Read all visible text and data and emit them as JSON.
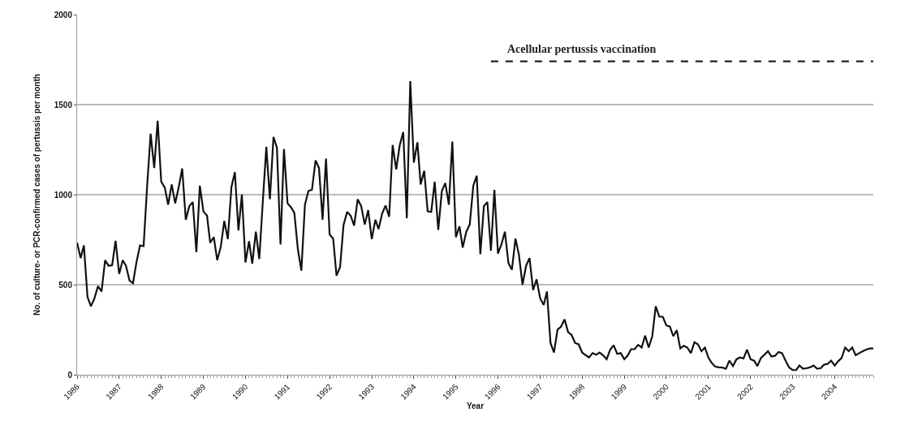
{
  "chart_data": {
    "type": "line",
    "xlabel": "Year",
    "ylabel": "No. of culture- or PCR-confirmed cases of pertussis per month",
    "grid": "y",
    "ylim": [
      0,
      2000
    ],
    "yticks": [
      0,
      500,
      1000,
      1500,
      2000
    ],
    "xlim": [
      "1986-01",
      "2004-12"
    ],
    "xticks": [
      {
        "value": "1986-01",
        "label": "1986"
      },
      {
        "value": "1987-01",
        "label": "1987"
      },
      {
        "value": "1988-01",
        "label": "1988"
      },
      {
        "value": "1989-01",
        "label": "1989"
      },
      {
        "value": "1990-01",
        "label": "1990"
      },
      {
        "value": "1991-01",
        "label": "1991"
      },
      {
        "value": "1992-01",
        "label": "1992"
      },
      {
        "value": "1993-01",
        "label": "1993"
      },
      {
        "value": "1994-01",
        "label": "1994"
      },
      {
        "value": "1995-01",
        "label": "1995"
      },
      {
        "value": "1996-01",
        "label": "1996"
      },
      {
        "value": "1997-01",
        "label": "1997"
      },
      {
        "value": "1998-01",
        "label": "1998"
      },
      {
        "value": "1999-01",
        "label": "1999"
      },
      {
        "value": "2000-01",
        "label": "2000"
      },
      {
        "value": "2001-01",
        "label": "2001"
      },
      {
        "value": "2002-01",
        "label": "2002"
      },
      {
        "value": "2003-01",
        "label": "2003"
      },
      {
        "value": "2004-01",
        "label": "2004"
      }
    ],
    "x": [
      "1986-01",
      "1986-02",
      "1986-03",
      "1986-04",
      "1986-05",
      "1986-06",
      "1986-07",
      "1986-08",
      "1986-09",
      "1986-10",
      "1986-11",
      "1986-12",
      "1987-01",
      "1987-02",
      "1987-03",
      "1987-04",
      "1987-05",
      "1987-06",
      "1987-07",
      "1987-08",
      "1987-09",
      "1987-10",
      "1987-11",
      "1987-12",
      "1988-01",
      "1988-02",
      "1988-03",
      "1988-04",
      "1988-05",
      "1988-06",
      "1988-07",
      "1988-08",
      "1988-09",
      "1988-10",
      "1988-11",
      "1988-12",
      "1989-01",
      "1989-02",
      "1989-03",
      "1989-04",
      "1989-05",
      "1989-06",
      "1989-07",
      "1989-08",
      "1989-09",
      "1989-10",
      "1989-11",
      "1989-12",
      "1990-01",
      "1990-02",
      "1990-03",
      "1990-04",
      "1990-05",
      "1990-06",
      "1990-07",
      "1990-08",
      "1990-09",
      "1990-10",
      "1990-11",
      "1990-12",
      "1991-01",
      "1991-02",
      "1991-03",
      "1991-04",
      "1991-05",
      "1991-06",
      "1991-07",
      "1991-08",
      "1991-09",
      "1991-10",
      "1991-11",
      "1991-12",
      "1992-01",
      "1992-02",
      "1992-03",
      "1992-04",
      "1992-05",
      "1992-06",
      "1992-07",
      "1992-08",
      "1992-09",
      "1992-10",
      "1992-11",
      "1992-12",
      "1993-01",
      "1993-02",
      "1993-03",
      "1993-04",
      "1993-05",
      "1993-06",
      "1993-07",
      "1993-08",
      "1993-09",
      "1993-10",
      "1993-11",
      "1993-12",
      "1994-01",
      "1994-02",
      "1994-03",
      "1994-04",
      "1994-05",
      "1994-06",
      "1994-07",
      "1994-08",
      "1994-09",
      "1994-10",
      "1994-11",
      "1994-12",
      "1995-01",
      "1995-02",
      "1995-03",
      "1995-04",
      "1995-05",
      "1995-06",
      "1995-07",
      "1995-08",
      "1995-09",
      "1995-10",
      "1995-11",
      "1995-12",
      "1996-01",
      "1996-02",
      "1996-03",
      "1996-04",
      "1996-05",
      "1996-06",
      "1996-07",
      "1996-08",
      "1996-09",
      "1996-10",
      "1996-11",
      "1996-12",
      "1997-01",
      "1997-02",
      "1997-03",
      "1997-04",
      "1997-05",
      "1997-06",
      "1997-07",
      "1997-08",
      "1997-09",
      "1997-10",
      "1997-11",
      "1997-12",
      "1998-01",
      "1998-02",
      "1998-03",
      "1998-04",
      "1998-05",
      "1998-06",
      "1998-07",
      "1998-08",
      "1998-09",
      "1998-10",
      "1998-11",
      "1998-12",
      "1999-01",
      "1999-02",
      "1999-03",
      "1999-04",
      "1999-05",
      "1999-06",
      "1999-07",
      "1999-08",
      "1999-09",
      "1999-10",
      "1999-11",
      "1999-12",
      "2000-01",
      "2000-02",
      "2000-03",
      "2000-04",
      "2000-05",
      "2000-06",
      "2000-07",
      "2000-08",
      "2000-09",
      "2000-10",
      "2000-11",
      "2000-12",
      "2001-01",
      "2001-02",
      "2001-03",
      "2001-04",
      "2001-05",
      "2001-06",
      "2001-07",
      "2001-08",
      "2001-09",
      "2001-10",
      "2001-11",
      "2001-12",
      "2002-01",
      "2002-02",
      "2002-03",
      "2002-04",
      "2002-05",
      "2002-06",
      "2002-07",
      "2002-08",
      "2002-09",
      "2002-10",
      "2002-11",
      "2002-12",
      "2003-01",
      "2003-02",
      "2003-03",
      "2003-04",
      "2003-05",
      "2003-06",
      "2003-07",
      "2003-08",
      "2003-09",
      "2003-10",
      "2003-11",
      "2003-12",
      "2004-01",
      "2004-02",
      "2004-03",
      "2004-04",
      "2004-05",
      "2004-06",
      "2004-07",
      "2004-08",
      "2004-09",
      "2004-10",
      "2004-11",
      "2004-12"
    ],
    "series": [
      {
        "color": "#111111",
        "values": [
          733,
          648,
          718,
          432,
          380,
          425,
          492,
          462,
          636,
          605,
          608,
          744,
          560,
          636,
          605,
          523,
          508,
          628,
          718,
          714,
          1050,
          1339,
          1148,
          1411,
          1072,
          1039,
          944,
          1057,
          952,
          1042,
          1145,
          861,
          937,
          959,
          681,
          1050,
          907,
          884,
          733,
          764,
          636,
          711,
          854,
          753,
          1042,
          1125,
          801,
          1001,
          623,
          741,
          617,
          794,
          643,
          967,
          1265,
          974,
          1321,
          1260,
          723,
          1253,
          952,
          929,
          899,
          696,
          578,
          944,
          1020,
          1027,
          1190,
          1148,
          861,
          1200,
          779,
          756,
          550,
          598,
          831,
          904,
          884,
          828,
          974,
          937,
          834,
          914,
          753,
          861,
          809,
          895,
          940,
          877,
          1276,
          1140,
          1276,
          1348,
          869,
          1630,
          1178,
          1291,
          1057,
          1133,
          907,
          904,
          1072,
          804,
          1020,
          1065,
          944,
          1295,
          764,
          824,
          706,
          794,
          834,
          1050,
          1105,
          669,
          937,
          959,
          688,
          1027,
          673,
          726,
          794,
          620,
          583,
          756,
          666,
          500,
          605,
          648,
          470,
          530,
          425,
          387,
          462,
          176,
          123,
          251,
          267,
          307,
          236,
          221,
          176,
          169,
          123,
          108,
          96,
          120,
          111,
          123,
          108,
          86,
          139,
          164,
          116,
          120,
          86,
          108,
          142,
          142,
          166,
          151,
          217,
          151,
          214,
          380,
          322,
          322,
          274,
          267,
          214,
          247,
          146,
          161,
          151,
          120,
          181,
          169,
          131,
          151,
          93,
          63,
          45,
          41,
          40,
          33,
          78,
          48,
          86,
          96,
          90,
          139,
          86,
          78,
          48,
          93,
          111,
          131,
          101,
          105,
          126,
          120,
          78,
          41,
          26,
          26,
          51,
          33,
          36,
          41,
          51,
          33,
          36,
          56,
          60,
          78,
          51,
          75,
          93,
          151,
          131,
          151,
          108,
          120,
          131,
          140,
          146,
          146
        ]
      },
      {
        "name": "Acellular pertussis vaccination",
        "color": "#222222",
        "line_style": "dashed",
        "x": [
          "1995-11",
          "2004-12"
        ],
        "values": [
          1740,
          1740
        ]
      }
    ]
  }
}
